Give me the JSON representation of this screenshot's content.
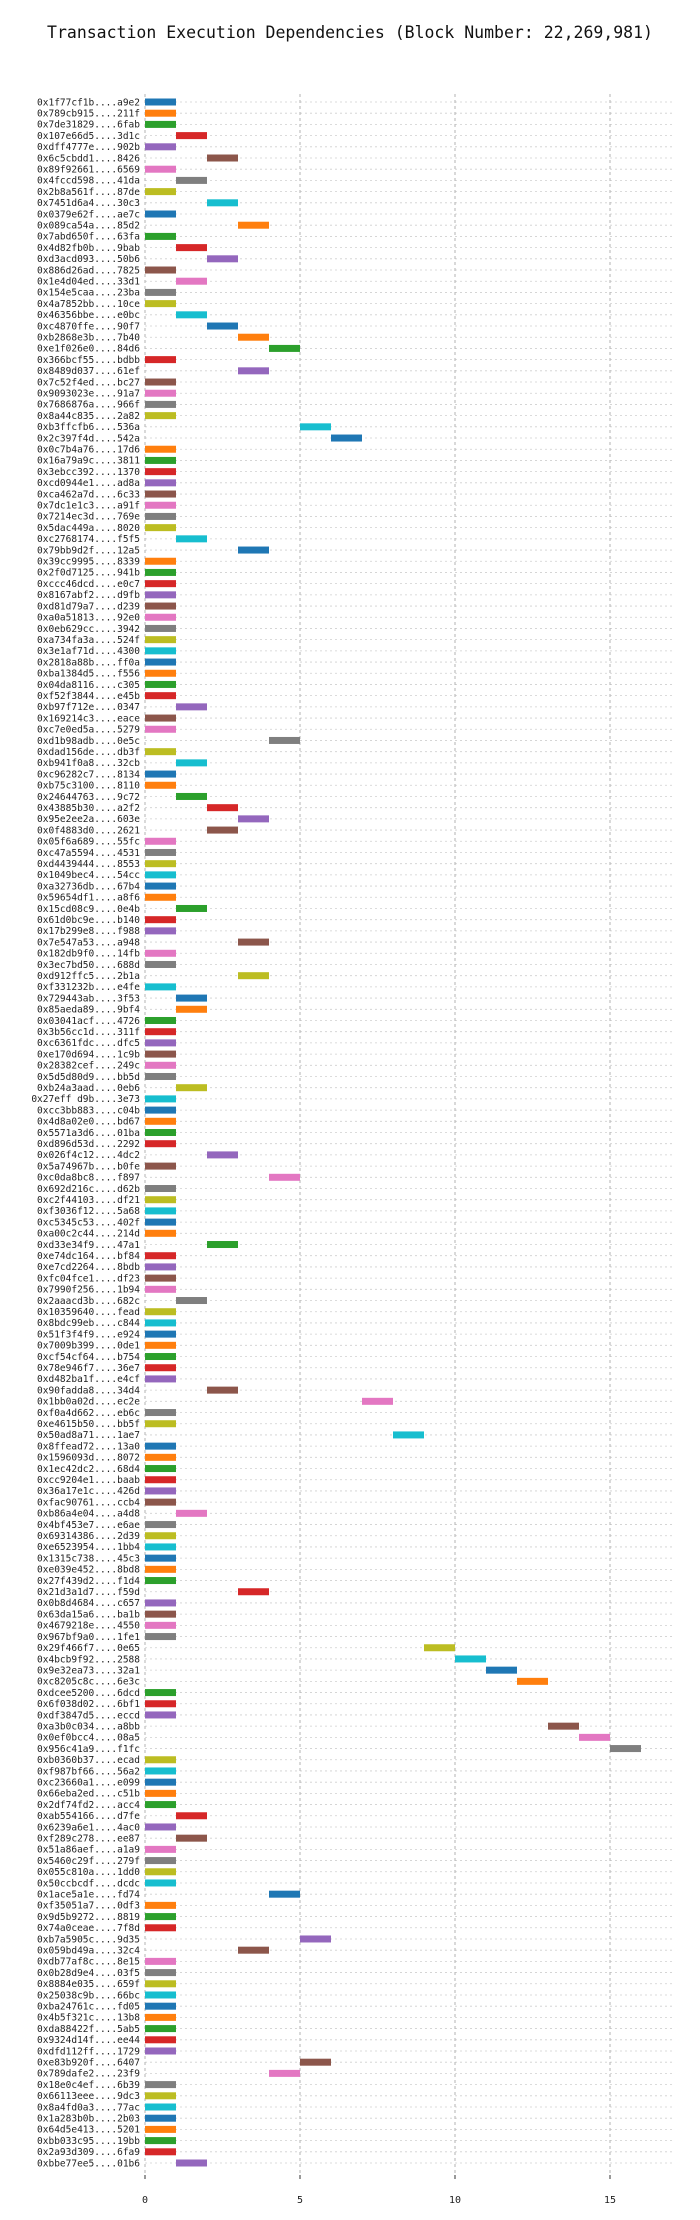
{
  "chart_data": {
    "type": "bar",
    "orientation": "horizontal",
    "title": "Transaction Execution Dependencies (Block Number: 22,269,981)",
    "xlabel": "",
    "ylabel": "",
    "xlim": [
      0,
      17
    ],
    "x_ticks": [
      0,
      5,
      10,
      15
    ],
    "grid": "on",
    "legend": "none",
    "palette": [
      "#1f77b4",
      "#ff7f0e",
      "#2ca02c",
      "#d62728",
      "#9467bd",
      "#8c564b",
      "#e377c2",
      "#7f7f7f",
      "#bcbd22",
      "#17becf"
    ],
    "bar_duration": 1,
    "transactions": [
      {
        "label": "0x1f77cf1b....a9e2",
        "start": 0
      },
      {
        "label": "0x789cb915....211f",
        "start": 0
      },
      {
        "label": "0x7de31829....6fab",
        "start": 0
      },
      {
        "label": "0x107e66d5....3d1c",
        "start": 1
      },
      {
        "label": "0xdff4777e....902b",
        "start": 0
      },
      {
        "label": "0x6c5cbdd1....8426",
        "start": 2
      },
      {
        "label": "0x89f92661....6569",
        "start": 0
      },
      {
        "label": "0x4fccd598....41da",
        "start": 1
      },
      {
        "label": "0x2b8a561f....87de",
        "start": 0
      },
      {
        "label": "0x7451d6a4....30c3",
        "start": 2
      },
      {
        "label": "0x0379e62f....ae7c",
        "start": 0
      },
      {
        "label": "0x089ca54a....85d2",
        "start": 3
      },
      {
        "label": "0x7abd650f....63fa",
        "start": 0
      },
      {
        "label": "0x4d82fb0b....9bab",
        "start": 1
      },
      {
        "label": "0xd3acd093....50b6",
        "start": 2
      },
      {
        "label": "0x886d26ad....7825",
        "start": 0
      },
      {
        "label": "0x1e4d04ed....33d1",
        "start": 1
      },
      {
        "label": "0x154e5caa....23ba",
        "start": 0
      },
      {
        "label": "0x4a7852bb....10ce",
        "start": 0
      },
      {
        "label": "0x46356bbe....e0bc",
        "start": 1
      },
      {
        "label": "0xc4870ffe....90f7",
        "start": 2
      },
      {
        "label": "0xb2868e3b....7b40",
        "start": 3
      },
      {
        "label": "0xe1f026e0....84d6",
        "start": 4
      },
      {
        "label": "0x366bcf55....bdbb",
        "start": 0
      },
      {
        "label": "0x8489d037....61ef",
        "start": 3
      },
      {
        "label": "0x7c52f4ed....bc27",
        "start": 0
      },
      {
        "label": "0x9093023e....91a7",
        "start": 0
      },
      {
        "label": "0x7686876a....966f",
        "start": 0
      },
      {
        "label": "0x8a44c835....2a82",
        "start": 0
      },
      {
        "label": "0xb3ffcfb6....536a",
        "start": 5
      },
      {
        "label": "0x2c397f4d....542a",
        "start": 6
      },
      {
        "label": "0x0c7b4a76....17d6",
        "start": 0
      },
      {
        "label": "0x16a79a9c....3811",
        "start": 0
      },
      {
        "label": "0x3ebcc392....1370",
        "start": 0
      },
      {
        "label": "0xcd0944e1....ad8a",
        "start": 0
      },
      {
        "label": "0xca462a7d....6c33",
        "start": 0
      },
      {
        "label": "0x7dc1e1c3....a91f",
        "start": 0
      },
      {
        "label": "0x7214ec3d....769e",
        "start": 0
      },
      {
        "label": "0x5dac449a....8020",
        "start": 0
      },
      {
        "label": "0xc2768174....f5f5",
        "start": 1
      },
      {
        "label": "0x79bb9d2f....12a5",
        "start": 3
      },
      {
        "label": "0x39cc9995....8339",
        "start": 0
      },
      {
        "label": "0x2f0d7125....941b",
        "start": 0
      },
      {
        "label": "0xccc46dcd....e0c7",
        "start": 0
      },
      {
        "label": "0x8167abf2....d9fb",
        "start": 0
      },
      {
        "label": "0xd81d79a7....d239",
        "start": 0
      },
      {
        "label": "0xa0a51813....92e0",
        "start": 0
      },
      {
        "label": "0x0eb629cc....3942",
        "start": 0
      },
      {
        "label": "0xa734fa3a....524f",
        "start": 0
      },
      {
        "label": "0x3e1af71d....4300",
        "start": 0
      },
      {
        "label": "0x2818a88b....ff0a",
        "start": 0
      },
      {
        "label": "0xba1384d5....f556",
        "start": 0
      },
      {
        "label": "0x04da8116....c305",
        "start": 0
      },
      {
        "label": "0xf52f3844....e45b",
        "start": 0
      },
      {
        "label": "0xb97f712e....0347",
        "start": 1
      },
      {
        "label": "0x169214c3....eace",
        "start": 0
      },
      {
        "label": "0xc7e0ed5a....5279",
        "start": 0
      },
      {
        "label": "0xd1b98adb....0e5c",
        "start": 4
      },
      {
        "label": "0xdad156de....db3f",
        "start": 0
      },
      {
        "label": "0xb941f0a8....32cb",
        "start": 1
      },
      {
        "label": "0xc96282c7....8134",
        "start": 0
      },
      {
        "label": "0xb75c3100....8110",
        "start": 0
      },
      {
        "label": "0x24644763....9c72",
        "start": 1
      },
      {
        "label": "0x43885b30....a2f2",
        "start": 2
      },
      {
        "label": "0x95e2ee2a....603e",
        "start": 3
      },
      {
        "label": "0x0f4883d0....2621",
        "start": 2
      },
      {
        "label": "0x05f6a689....55fc",
        "start": 0
      },
      {
        "label": "0xc47a5594....4531",
        "start": 0
      },
      {
        "label": "0xd4439444....8553",
        "start": 0
      },
      {
        "label": "0x1049bec4....54cc",
        "start": 0
      },
      {
        "label": "0xa32736db....67b4",
        "start": 0
      },
      {
        "label": "0x59654df1....a8f6",
        "start": 0
      },
      {
        "label": "0x15cd08c9....0e4b",
        "start": 1
      },
      {
        "label": "0x61d0bc9e....b140",
        "start": 0
      },
      {
        "label": "0x17b299e8....f988",
        "start": 0
      },
      {
        "label": "0x7e547a53....a948",
        "start": 3
      },
      {
        "label": "0x182db9f0....14fb",
        "start": 0
      },
      {
        "label": "0x3ec7bd50....688d",
        "start": 0
      },
      {
        "label": "0xd912ffc5....2b1a",
        "start": 3
      },
      {
        "label": "0xf331232b....e4fe",
        "start": 0
      },
      {
        "label": "0x729443ab....3f53",
        "start": 1
      },
      {
        "label": "0x85aeda89....9bf4",
        "start": 1
      },
      {
        "label": "0x03041acf....4726",
        "start": 0
      },
      {
        "label": "0x3b56cc1d....311f",
        "start": 0
      },
      {
        "label": "0xc6361fdc....dfc5",
        "start": 0
      },
      {
        "label": "0xe170d694....1c9b",
        "start": 0
      },
      {
        "label": "0x28382cef....249c",
        "start": 0
      },
      {
        "label": "0x5d5d80d9....bb5d",
        "start": 0
      },
      {
        "label": "0xb24a3aad....0eb6",
        "start": 1
      },
      {
        "label": "0x27eff d9b....3e73",
        "start": 0
      },
      {
        "label": "0xcc3bb883....c04b",
        "start": 0
      },
      {
        "label": "0x4d8a02e0....bd67",
        "start": 0
      },
      {
        "label": "0x5571a3d6....01ba",
        "start": 0
      },
      {
        "label": "0xd896d53d....2292",
        "start": 0
      },
      {
        "label": "0x026f4c12....4dc2",
        "start": 2
      },
      {
        "label": "0x5a74967b....b0fe",
        "start": 0
      },
      {
        "label": "0xc0da8bc8....f897",
        "start": 4
      },
      {
        "label": "0x692d216c....d62b",
        "start": 0
      },
      {
        "label": "0xc2f44103....df21",
        "start": 0
      },
      {
        "label": "0xf3036f12....5a68",
        "start": 0
      },
      {
        "label": "0xc5345c53....402f",
        "start": 0
      },
      {
        "label": "0xa00c2c44....214d",
        "start": 0
      },
      {
        "label": "0xd33e34f9....47a1",
        "start": 2
      },
      {
        "label": "0xe74dc164....bf84",
        "start": 0
      },
      {
        "label": "0xe7cd2264....8bdb",
        "start": 0
      },
      {
        "label": "0xfc04fce1....df23",
        "start": 0
      },
      {
        "label": "0x7990f256....1b94",
        "start": 0
      },
      {
        "label": "0x2aaacd3b....682c",
        "start": 1
      },
      {
        "label": "0x10359640....fead",
        "start": 0
      },
      {
        "label": "0x8bdc99eb....c844",
        "start": 0
      },
      {
        "label": "0x51f3f4f9....e924",
        "start": 0
      },
      {
        "label": "0x7009b399....0de1",
        "start": 0
      },
      {
        "label": "0xcf54cf64....b754",
        "start": 0
      },
      {
        "label": "0x78e946f7....36e7",
        "start": 0
      },
      {
        "label": "0xd482ba1f....e4cf",
        "start": 0
      },
      {
        "label": "0x90fadda8....34d4",
        "start": 2
      },
      {
        "label": "0x1bb0a02d....ec2e",
        "start": 7
      },
      {
        "label": "0xf0a4d662....eb6c",
        "start": 0
      },
      {
        "label": "0xe4615b50....bb5f",
        "start": 0
      },
      {
        "label": "0x50ad8a71....1ae7",
        "start": 8
      },
      {
        "label": "0x8ffead72....13a0",
        "start": 0
      },
      {
        "label": "0x1596093d....8072",
        "start": 0
      },
      {
        "label": "0x1ec42dc2....68d4",
        "start": 0
      },
      {
        "label": "0xcc9204e1....baab",
        "start": 0
      },
      {
        "label": "0x36a17e1c....426d",
        "start": 0
      },
      {
        "label": "0xfac90761....ccb4",
        "start": 0
      },
      {
        "label": "0xb86a4e04....a4d8",
        "start": 1
      },
      {
        "label": "0x4bf453e7....e6ae",
        "start": 0
      },
      {
        "label": "0x69314386....2d39",
        "start": 0
      },
      {
        "label": "0xe6523954....1bb4",
        "start": 0
      },
      {
        "label": "0x1315c738....45c3",
        "start": 0
      },
      {
        "label": "0xe039e452....8bd8",
        "start": 0
      },
      {
        "label": "0x27f439d2....f1d4",
        "start": 0
      },
      {
        "label": "0x21d3a1d7....f59d",
        "start": 3
      },
      {
        "label": "0x0b8d4684....c657",
        "start": 0
      },
      {
        "label": "0x63da15a6....ba1b",
        "start": 0
      },
      {
        "label": "0x4679218e....4550",
        "start": 0
      },
      {
        "label": "0x967bf9a0....1fe1",
        "start": 0
      },
      {
        "label": "0x29f466f7....0e65",
        "start": 9
      },
      {
        "label": "0x4bcb9f92....2588",
        "start": 10
      },
      {
        "label": "0x9e32ea73....32a1",
        "start": 11
      },
      {
        "label": "0xc8205c8c....6e3c",
        "start": 12
      },
      {
        "label": "0xdcee5200....6dcd",
        "start": 0
      },
      {
        "label": "0x6f038d02....6bf1",
        "start": 0
      },
      {
        "label": "0xdf3847d5....eccd",
        "start": 0
      },
      {
        "label": "0xa3b0c034....a8bb",
        "start": 13
      },
      {
        "label": "0x0ef0bcc4....08a5",
        "start": 14
      },
      {
        "label": "0x956c41a9....f1fc",
        "start": 15
      },
      {
        "label": "0xb0360b37....ecad",
        "start": 0
      },
      {
        "label": "0xf987bf66....56a2",
        "start": 0
      },
      {
        "label": "0xc23660a1....e099",
        "start": 0
      },
      {
        "label": "0x66eba2ed....c51b",
        "start": 0
      },
      {
        "label": "0x2df74fd2....acc4",
        "start": 0
      },
      {
        "label": "0xab554166....d7fe",
        "start": 1
      },
      {
        "label": "0x6239a6e1....4ac0",
        "start": 0
      },
      {
        "label": "0xf289c278....ee87",
        "start": 1
      },
      {
        "label": "0x51a86aef....a1a9",
        "start": 0
      },
      {
        "label": "0x5460c29f....279f",
        "start": 0
      },
      {
        "label": "0x055c810a....1dd0",
        "start": 0
      },
      {
        "label": "0x50ccbcdf....dcdc",
        "start": 0
      },
      {
        "label": "0x1ace5a1e....fd74",
        "start": 4
      },
      {
        "label": "0xf35051a7....0df3",
        "start": 0
      },
      {
        "label": "0x9d5b9272....8819",
        "start": 0
      },
      {
        "label": "0x74a0ceae....7f8d",
        "start": 0
      },
      {
        "label": "0xb7a5905c....9d35",
        "start": 5
      },
      {
        "label": "0x059bd49a....32c4",
        "start": 3
      },
      {
        "label": "0xdb77af8c....8e15",
        "start": 0
      },
      {
        "label": "0x0b28d9e4....03f5",
        "start": 0
      },
      {
        "label": "0x8884e035....659f",
        "start": 0
      },
      {
        "label": "0x25038c9b....66bc",
        "start": 0
      },
      {
        "label": "0xba24761c....fd05",
        "start": 0
      },
      {
        "label": "0x4b5f321c....13b8",
        "start": 0
      },
      {
        "label": "0xda88422f....5ab5",
        "start": 0
      },
      {
        "label": "0x9324d14f....ee44",
        "start": 0
      },
      {
        "label": "0xdfd112ff....1729",
        "start": 0
      },
      {
        "label": "0xe83b920f....6407",
        "start": 5
      },
      {
        "label": "0x789dafe2....23f9",
        "start": 4
      },
      {
        "label": "0x18e0c4ef....6b39",
        "start": 0
      },
      {
        "label": "0x66113eee....9dc3",
        "start": 0
      },
      {
        "label": "0x8a4fd0a3....77ac",
        "start": 0
      },
      {
        "label": "0x1a283b0b....2b03",
        "start": 0
      },
      {
        "label": "0x64d5e413....5201",
        "start": 0
      },
      {
        "label": "0xbb033c95....19bb",
        "start": 0
      },
      {
        "label": "0x2a93d309....6fa9",
        "start": 0
      },
      {
        "label": "0xbbe77ee5....01b6",
        "start": 1
      }
    ]
  }
}
